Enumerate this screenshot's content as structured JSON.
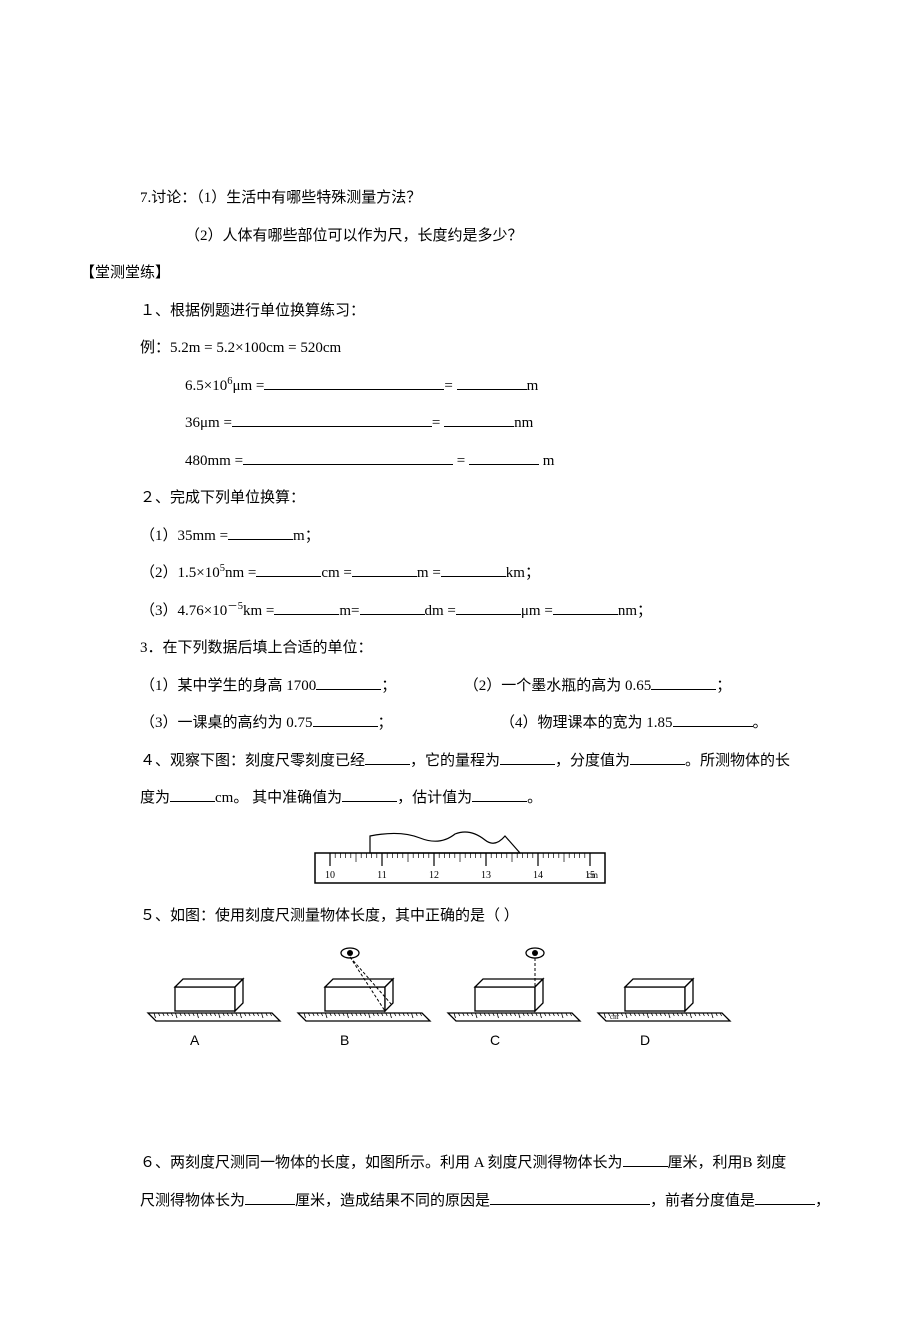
{
  "q7": {
    "prefix": "7.讨论：",
    "p1": "（1）生活中有哪些特殊测量方法？",
    "p2": "（2）人体有哪些部位可以作为尺，长度约是多少？"
  },
  "section": "【堂测堂练】",
  "q1": {
    "title": "１、根据例题进行单位换算练习：",
    "example_label": "例：",
    "example": "5.2m = 5.2×100cm = 520cm",
    "line1_a": "6.5×10",
    "line1_sup": "6",
    "line1_b": "μm =",
    "line1_eq": "= ",
    "line1_unit": "m",
    "line2_a": "36μm =",
    "line2_eq": "= ",
    "line2_unit": "nm",
    "line3_a": "480mm =",
    "line3_eq": " = ",
    "line3_unit": " m"
  },
  "q2": {
    "title": "２、完成下列单位换算：",
    "p1a": "（1）35mm =",
    "p1b": "m；",
    "p2a": "（2）1.5×10",
    "p2sup": "5",
    "p2b": "nm =",
    "p2c": "cm =",
    "p2d": "m =",
    "p2e": "km；",
    "p3a": "（3）4.76×10",
    "p3sup": "－5",
    "p3b": "km =",
    "p3c": "m=",
    "p3d": "dm =",
    "p3e": "μm  =",
    "p3f": "nm；"
  },
  "q3": {
    "title": "3．在下列数据后填上合适的单位：",
    "p1a": "（1）某中学生的身高 1700",
    "p1b": "；",
    "p1c": "（2）一个墨水瓶的高为 0.65",
    "p1d": "；",
    "p2a": "（3）一课桌的高约为 0.75",
    "p2b": "；",
    "p2c": "（4）物理课本的宽为 1.85",
    "p2d": "。"
  },
  "q4": {
    "a": "４、观察下图：刻度尺零刻度已经",
    "b": "，它的量程为",
    "c": "，分度值为",
    "d": "。所测物体的长",
    "e": "度为",
    "f": "cm。 其中准确值为",
    "g": "，估计值为",
    "h": "。"
  },
  "q5": {
    "title": "５、如图：使用刻度尺测量物体长度，其中正确的是（    ）",
    "labels": [
      "A",
      "B",
      "C",
      "D"
    ]
  },
  "q6": {
    "a": "６、两刻度尺测同一物体的长度，如图所示。利用 A 刻度尺测得物体长为",
    "b": "厘米，利用B 刻度",
    "c": "尺测得物体长为",
    "d": "厘米，造成结果不同的原因是",
    "e": "，前者分度值是",
    "f": "，"
  },
  "ruler_fig": {
    "ticks": [
      "10",
      "11",
      "12",
      "13",
      "14",
      "15"
    ],
    "unit": "cm"
  }
}
